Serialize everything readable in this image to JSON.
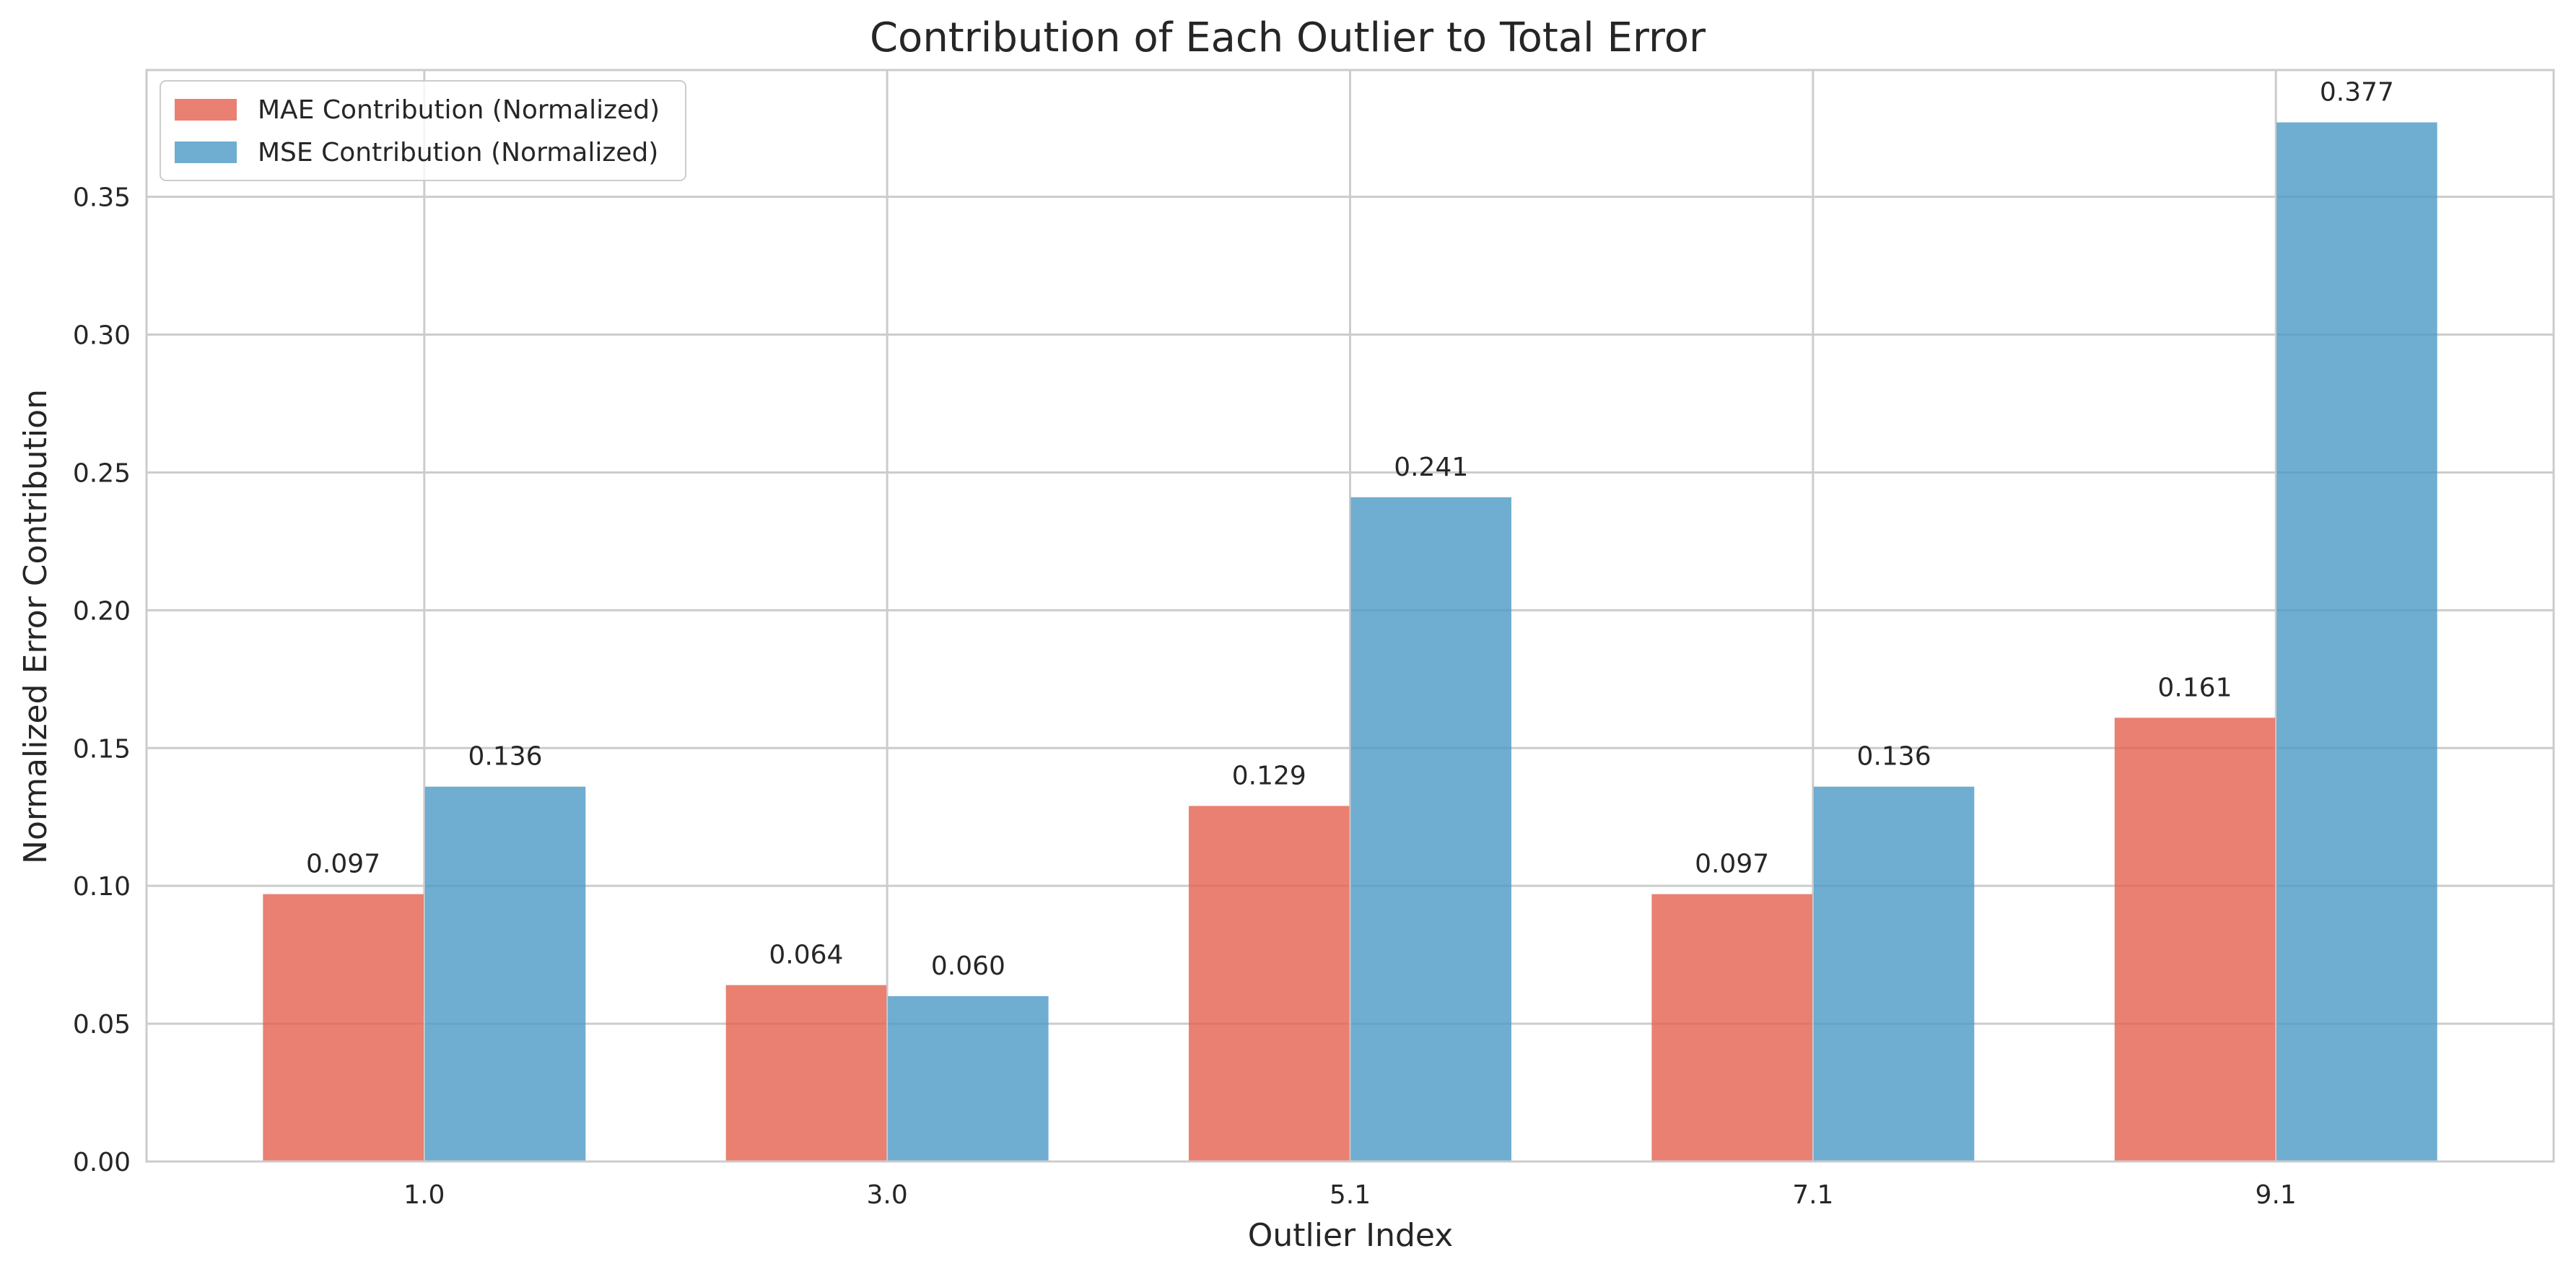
{
  "chart_data": {
    "type": "bar",
    "title": "Contribution of Each Outlier to Total Error",
    "xlabel": "Outlier Index",
    "ylabel": "Normalized Error Contribution",
    "categories": [
      "1.0",
      "3.0",
      "5.1",
      "7.1",
      "9.1"
    ],
    "series": [
      {
        "name": "MAE Contribution (Normalized)",
        "color": "#e4604e",
        "values": [
          0.097,
          0.064,
          0.129,
          0.097,
          0.161
        ],
        "labels": [
          "0.097",
          "0.064",
          "0.129",
          "0.097",
          "0.161"
        ]
      },
      {
        "name": "MSE Contribution (Normalized)",
        "color": "#4b98c5",
        "values": [
          0.136,
          0.06,
          0.241,
          0.136,
          0.377
        ],
        "labels": [
          "0.136",
          "0.060",
          "0.241",
          "0.136",
          "0.377"
        ]
      }
    ],
    "ylim": [
      0,
      0.396
    ],
    "yticks": [
      0.0,
      0.05,
      0.1,
      0.15,
      0.2,
      0.25,
      0.3,
      0.35
    ],
    "ytick_labels": [
      "0.00",
      "0.05",
      "0.10",
      "0.15",
      "0.20",
      "0.25",
      "0.30",
      "0.35"
    ],
    "grid": true,
    "legend_position": "top-left",
    "bar_opacity": 0.8
  }
}
